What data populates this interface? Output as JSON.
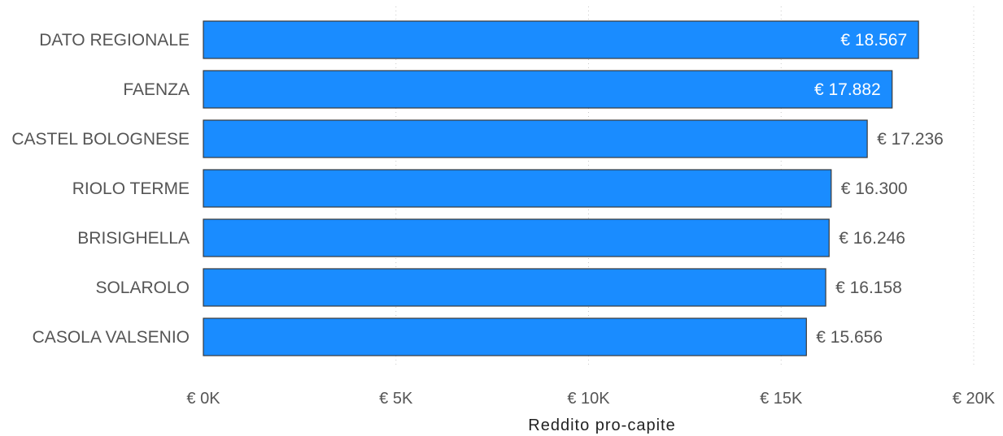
{
  "chart_data": {
    "type": "bar",
    "orientation": "horizontal",
    "categories": [
      "DATO REGIONALE",
      "FAENZA",
      "CASTEL BOLOGNESE",
      "RIOLO TERME",
      "BRISIGHELLA",
      "SOLAROLO",
      "CASOLA VALSENIO"
    ],
    "values": [
      18567,
      17882,
      17236,
      16300,
      16246,
      16158,
      15656
    ],
    "data_labels": [
      "€ 18.567",
      "€ 17.882",
      "€ 17.236",
      "€ 16.300",
      "€ 16.246",
      "€ 16.158",
      "€ 15.656"
    ],
    "xlabel": "Reddito pro-capite",
    "xlim": [
      0,
      20000
    ],
    "x_ticks": [
      0,
      5000,
      10000,
      15000,
      20000
    ],
    "x_tick_labels": [
      "€ 0K",
      "€ 5K",
      "€ 10K",
      "€ 15K",
      "€ 20K"
    ],
    "grid": true,
    "colors": {
      "bar": "#1a8cff",
      "bar_border": "#3a3a3a"
    }
  }
}
